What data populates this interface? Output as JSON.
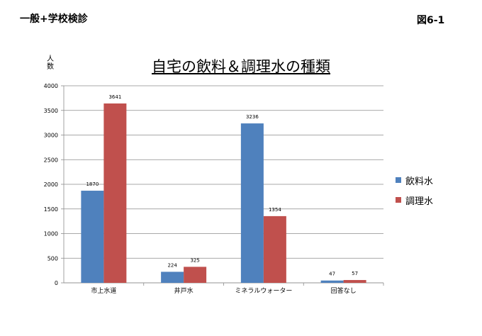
{
  "header": {
    "left_text": "一般+学校検診",
    "right_text": "図6-1"
  },
  "colors": {
    "series1": "#4F81BD",
    "series2": "#C0504D",
    "grid": "#8c8c8c"
  },
  "chart_data": {
    "type": "bar",
    "title": "自宅の飲料＆調理水の種類",
    "ylabel": "人数",
    "xlabel": "",
    "categories": [
      "市上水道",
      "井戸水",
      "ミネラルウォーター",
      "回答なし"
    ],
    "series": [
      {
        "name": "飲料水",
        "values": [
          1870,
          224,
          3236,
          47
        ]
      },
      {
        "name": "調理水",
        "values": [
          3641,
          325,
          1354,
          57
        ]
      }
    ],
    "ylim": [
      0,
      4000
    ],
    "yticks": [
      0,
      500,
      1000,
      1500,
      2000,
      2500,
      3000,
      3500,
      4000
    ],
    "grid": true,
    "legend": "right"
  }
}
